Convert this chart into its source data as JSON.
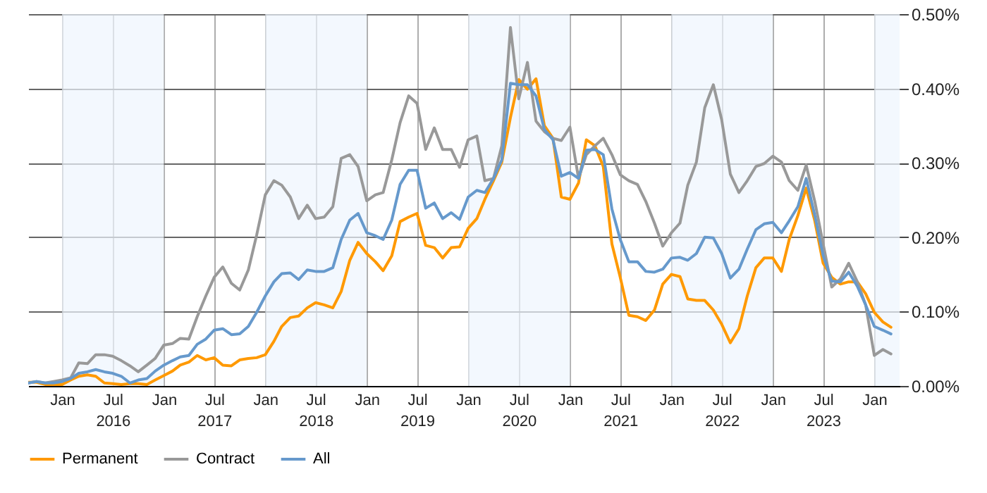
{
  "chart_data": {
    "type": "line",
    "x": [
      "2015-09",
      "2015-10",
      "2015-11",
      "2015-12",
      "2016-01",
      "2016-02",
      "2016-03",
      "2016-04",
      "2016-05",
      "2016-06",
      "2016-07",
      "2016-08",
      "2016-09",
      "2016-10",
      "2016-11",
      "2016-12",
      "2017-01",
      "2017-02",
      "2017-03",
      "2017-04",
      "2017-05",
      "2017-06",
      "2017-07",
      "2017-08",
      "2017-09",
      "2017-10",
      "2017-11",
      "2017-12",
      "2018-01",
      "2018-02",
      "2018-03",
      "2018-04",
      "2018-05",
      "2018-06",
      "2018-07",
      "2018-08",
      "2018-09",
      "2018-10",
      "2018-11",
      "2018-12",
      "2019-01",
      "2019-02",
      "2019-03",
      "2019-04",
      "2019-05",
      "2019-06",
      "2019-07",
      "2019-08",
      "2019-09",
      "2019-10",
      "2019-11",
      "2019-12",
      "2020-01",
      "2020-02",
      "2020-03",
      "2020-04",
      "2020-05",
      "2020-06",
      "2020-07",
      "2020-08",
      "2020-09",
      "2020-10",
      "2020-11",
      "2020-12",
      "2021-01",
      "2021-02",
      "2021-03",
      "2021-04",
      "2021-05",
      "2021-06",
      "2021-07",
      "2021-08",
      "2021-09",
      "2021-10",
      "2021-11",
      "2021-12",
      "2022-01",
      "2022-02",
      "2022-03",
      "2022-04",
      "2022-05",
      "2022-06",
      "2022-07",
      "2022-08",
      "2022-09",
      "2022-10",
      "2022-11",
      "2022-12",
      "2023-01",
      "2023-02",
      "2023-03",
      "2023-04",
      "2023-05",
      "2023-06",
      "2023-07",
      "2023-08",
      "2023-09",
      "2023-10",
      "2023-11",
      "2023-12",
      "2024-01",
      "2024-02",
      "2024-03"
    ],
    "series": [
      {
        "name": "Permanent",
        "color": "#ff9900",
        "values": [
          0.005,
          0.005,
          0.002,
          0.002,
          0.002,
          0.008,
          0.013,
          0.015,
          0.013,
          0.004,
          0.003,
          0.002,
          0.003,
          0.003,
          0.002,
          0.008,
          0.014,
          0.02,
          0.028,
          0.032,
          0.041,
          0.035,
          0.038,
          0.028,
          0.027,
          0.035,
          0.037,
          0.038,
          0.042,
          0.06,
          0.08,
          0.092,
          0.094,
          0.105,
          0.112,
          0.109,
          0.105,
          0.127,
          0.169,
          0.193,
          0.178,
          0.167,
          0.155,
          0.175,
          0.221,
          0.227,
          0.232,
          0.189,
          0.186,
          0.172,
          0.186,
          0.187,
          0.212,
          0.225,
          0.251,
          0.276,
          0.301,
          0.361,
          0.412,
          0.399,
          0.413,
          0.35,
          0.333,
          0.254,
          0.251,
          0.273,
          0.331,
          0.323,
          0.295,
          0.191,
          0.146,
          0.095,
          0.093,
          0.088,
          0.102,
          0.137,
          0.15,
          0.147,
          0.117,
          0.115,
          0.115,
          0.102,
          0.083,
          0.058,
          0.077,
          0.121,
          0.159,
          0.172,
          0.172,
          0.154,
          0.197,
          0.229,
          0.266,
          0.222,
          0.165,
          0.146,
          0.137,
          0.14,
          0.14,
          0.124,
          0.099,
          0.086,
          0.079
        ]
      },
      {
        "name": "Contract",
        "color": "#999999",
        "values": [
          0.004,
          0.006,
          0.004,
          0.006,
          0.008,
          0.011,
          0.031,
          0.03,
          0.042,
          0.042,
          0.04,
          0.034,
          0.027,
          0.019,
          0.028,
          0.037,
          0.055,
          0.057,
          0.064,
          0.063,
          0.093,
          0.121,
          0.146,
          0.16,
          0.138,
          0.129,
          0.156,
          0.203,
          0.257,
          0.276,
          0.27,
          0.254,
          0.225,
          0.243,
          0.225,
          0.227,
          0.241,
          0.306,
          0.311,
          0.295,
          0.249,
          0.257,
          0.26,
          0.304,
          0.354,
          0.39,
          0.38,
          0.318,
          0.347,
          0.318,
          0.318,
          0.294,
          0.331,
          0.336,
          0.276,
          0.279,
          0.323,
          0.482,
          0.386,
          0.435,
          0.356,
          0.342,
          0.333,
          0.33,
          0.348,
          0.279,
          0.311,
          0.323,
          0.333,
          0.311,
          0.284,
          0.276,
          0.271,
          0.248,
          0.219,
          0.188,
          0.206,
          0.219,
          0.27,
          0.301,
          0.374,
          0.405,
          0.358,
          0.285,
          0.26,
          0.276,
          0.295,
          0.299,
          0.309,
          0.301,
          0.276,
          0.263,
          0.297,
          0.248,
          0.191,
          0.133,
          0.144,
          0.165,
          0.14,
          0.109,
          0.041,
          0.049,
          0.043
        ]
      },
      {
        "name": "All",
        "color": "#6699cc",
        "values": [
          0.004,
          0.006,
          0.004,
          0.004,
          0.006,
          0.01,
          0.017,
          0.019,
          0.022,
          0.019,
          0.017,
          0.013,
          0.004,
          0.008,
          0.01,
          0.02,
          0.028,
          0.034,
          0.039,
          0.041,
          0.056,
          0.063,
          0.075,
          0.077,
          0.069,
          0.07,
          0.08,
          0.099,
          0.121,
          0.14,
          0.151,
          0.152,
          0.143,
          0.156,
          0.154,
          0.154,
          0.159,
          0.197,
          0.223,
          0.232,
          0.206,
          0.202,
          0.197,
          0.223,
          0.271,
          0.29,
          0.29,
          0.239,
          0.246,
          0.225,
          0.233,
          0.224,
          0.254,
          0.263,
          0.26,
          0.279,
          0.304,
          0.407,
          0.405,
          0.405,
          0.39,
          0.345,
          0.331,
          0.282,
          0.287,
          0.279,
          0.317,
          0.318,
          0.311,
          0.238,
          0.197,
          0.167,
          0.167,
          0.154,
          0.153,
          0.157,
          0.172,
          0.173,
          0.169,
          0.178,
          0.2,
          0.199,
          0.178,
          0.145,
          0.157,
          0.184,
          0.21,
          0.218,
          0.22,
          0.206,
          0.222,
          0.241,
          0.279,
          0.229,
          0.175,
          0.141,
          0.14,
          0.153,
          0.134,
          0.109,
          0.08,
          0.075,
          0.07
        ]
      }
    ],
    "xlim": [
      "2015-09",
      "2024-04"
    ],
    "xticks": [
      {
        "value": "2016-01",
        "label": "Jan"
      },
      {
        "value": "2016-07",
        "label": "Jul"
      },
      {
        "value": "2017-01",
        "label": "Jan"
      },
      {
        "value": "2017-07",
        "label": "Jul"
      },
      {
        "value": "2018-01",
        "label": "Jan"
      },
      {
        "value": "2018-07",
        "label": "Jul"
      },
      {
        "value": "2019-01",
        "label": "Jan"
      },
      {
        "value": "2019-07",
        "label": "Jul"
      },
      {
        "value": "2020-01",
        "label": "Jan"
      },
      {
        "value": "2020-07",
        "label": "Jul"
      },
      {
        "value": "2021-01",
        "label": "Jan"
      },
      {
        "value": "2021-07",
        "label": "Jul"
      },
      {
        "value": "2022-01",
        "label": "Jan"
      },
      {
        "value": "2022-07",
        "label": "Jul"
      },
      {
        "value": "2023-01",
        "label": "Jan"
      },
      {
        "value": "2023-07",
        "label": "Jul"
      },
      {
        "value": "2024-01",
        "label": "Jan"
      }
    ],
    "x2lim": [
      "2015-09",
      "2024-04"
    ],
    "x2ticks": [
      {
        "value": "2016-07",
        "label": "2016"
      },
      {
        "value": "2017-07",
        "label": "2017"
      },
      {
        "value": "2018-07",
        "label": "2018"
      },
      {
        "value": "2019-07",
        "label": "2019"
      },
      {
        "value": "2020-07",
        "label": "2020"
      },
      {
        "value": "2021-07",
        "label": "2021"
      },
      {
        "value": "2022-07",
        "label": "2022"
      },
      {
        "value": "2023-07",
        "label": "2023"
      }
    ],
    "ylim": [
      0,
      0.5
    ],
    "yticks": [
      {
        "value": 0,
        "label": "0.00%"
      },
      {
        "value": 0.1,
        "label": "0.10%"
      },
      {
        "value": 0.2,
        "label": "0.20%"
      },
      {
        "value": 0.3,
        "label": "0.30%"
      },
      {
        "value": 0.4,
        "label": "0.40%"
      },
      {
        "value": 0.5,
        "label": "0.50%"
      }
    ],
    "bands": [
      {
        "axis": "x",
        "from": "2016-01",
        "to": "2017-01",
        "color": "#eef5fe"
      },
      {
        "axis": "x",
        "from": "2018-01",
        "to": "2019-01",
        "color": "#eef5fe"
      },
      {
        "axis": "x",
        "from": "2020-01",
        "to": "2021-01",
        "color": "#eef5fe"
      },
      {
        "axis": "x",
        "from": "2022-01",
        "to": "2023-01",
        "color": "#eef5fe"
      },
      {
        "axis": "x",
        "from": "2024-01",
        "to": "2024-04",
        "color": "#eef5fe"
      }
    ],
    "grid": true,
    "legend": "bottom",
    "marker": "none",
    "line_style": "solid"
  }
}
